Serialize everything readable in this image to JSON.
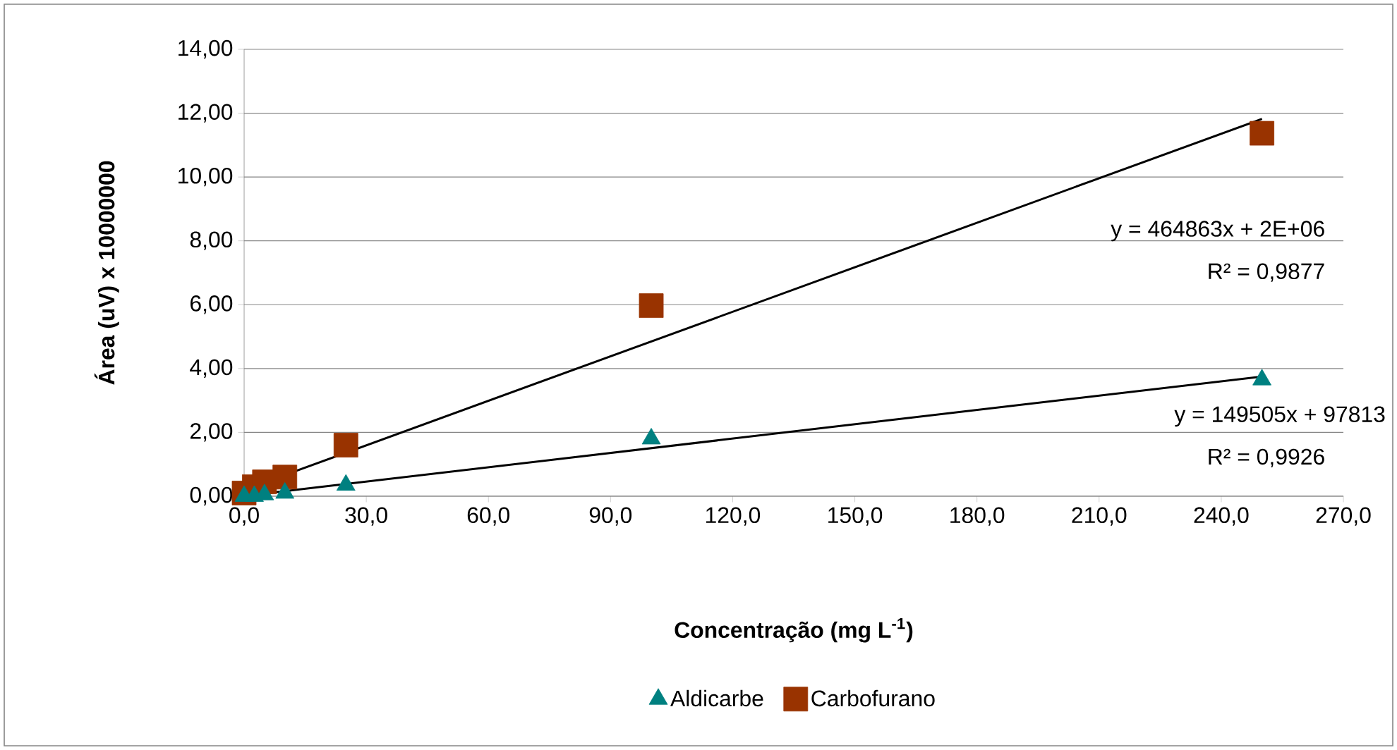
{
  "chart_data": {
    "type": "scatter",
    "xlabel": "**Concentração (mg L$^{-1}$)**",
    "ylabel": "**Área (uV)  x 10000000**",
    "xlim": [
      0,
      270
    ],
    "ylim": [
      0,
      14
    ],
    "xticks": [
      {
        "value": 0,
        "label": "0,0"
      },
      {
        "value": 30,
        "label": "30,0"
      },
      {
        "value": 60,
        "label": "60,0"
      },
      {
        "value": 90,
        "label": "90,0"
      },
      {
        "value": 120,
        "label": "120,0"
      },
      {
        "value": 150,
        "label": "150,0"
      },
      {
        "value": 180,
        "label": "180,0"
      },
      {
        "value": 210,
        "label": "210,0"
      },
      {
        "value": 240,
        "label": "240,0"
      },
      {
        "value": 270,
        "label": "270,0"
      }
    ],
    "yticks": [
      {
        "value": 0,
        "label": "0,00"
      },
      {
        "value": 2,
        "label": "2,00"
      },
      {
        "value": 4,
        "label": "4,00"
      },
      {
        "value": 6,
        "label": "6,00"
      },
      {
        "value": 8,
        "label": "8,00"
      },
      {
        "value": 10,
        "label": "10,00"
      },
      {
        "value": 12,
        "label": "12,00"
      },
      {
        "value": 14,
        "label": "14,00"
      }
    ],
    "grid": "y",
    "legend": "bottom",
    "series": [
      {
        "name": "Aldicarbe",
        "type": "scatter",
        "marker": "triangle",
        "color": "#008080",
        "x": [
          0,
          2.5,
          5,
          10,
          25,
          100,
          250
        ],
        "values": [
          0.0,
          0.0,
          0.05,
          0.1,
          0.35,
          1.8,
          3.65
        ]
      },
      {
        "name": "Carbofurano",
        "type": "scatter",
        "marker": "square",
        "color": "#993300",
        "x": [
          0,
          2.5,
          5,
          10,
          25,
          100,
          250
        ],
        "values": [
          0.1,
          0.3,
          0.45,
          0.6,
          1.6,
          5.97,
          11.37
        ]
      },
      {
        "type": "line",
        "marker": "none",
        "color": "#000000",
        "x": [
          0,
          250
        ],
        "values": [
          0.2,
          11.82
        ]
      },
      {
        "type": "line",
        "marker": "none",
        "color": "#000000",
        "x": [
          0,
          250
        ],
        "values": [
          0.01,
          3.75
        ]
      }
    ],
    "annotations": [
      "y = 464863x + 2E+06",
      "R² = 0,9877",
      "y = 149505x + 97813",
      "R² = 0,9926"
    ]
  }
}
